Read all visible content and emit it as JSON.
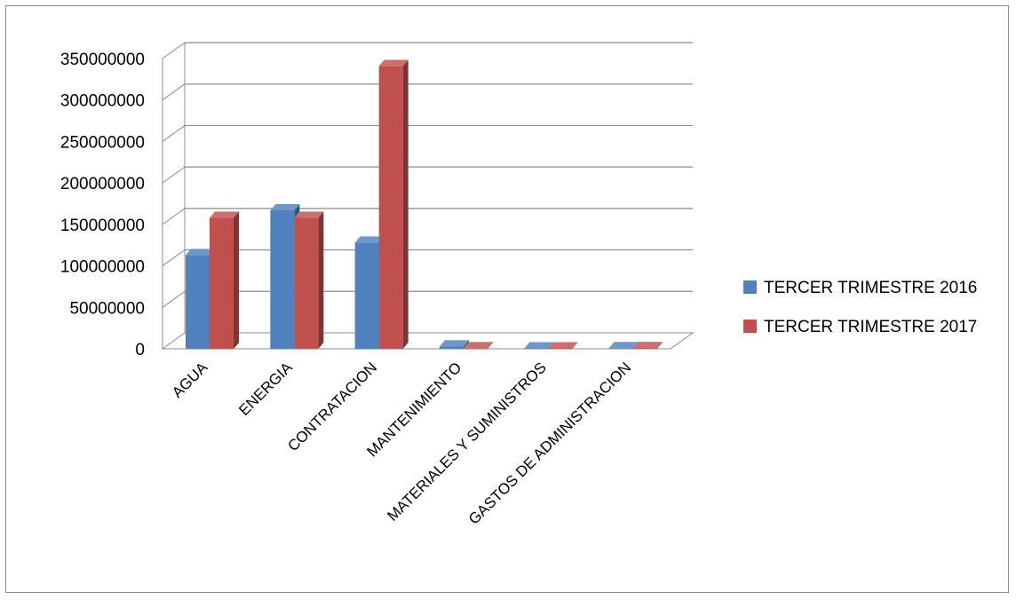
{
  "chart_data": {
    "type": "bar",
    "style": "3d-clustered-column",
    "title": "",
    "xlabel": "",
    "ylabel": "",
    "ylim": [
      0,
      350000000
    ],
    "yticks": [
      "0",
      "50000000",
      "100000000",
      "150000000",
      "200000000",
      "250000000",
      "300000000",
      "350000000"
    ],
    "grid": true,
    "legend_position": "right",
    "categories": [
      "AGUA",
      "ENERGIA",
      "CONTRATACION",
      "MANTENIMIENTO",
      "MATERIALES Y SUMINISTROS",
      "GASTOS DE ADMINISTRACION"
    ],
    "series": [
      {
        "name": "TERCER TRIMESTRE 2016",
        "color": "#4F81BD",
        "values": [
          113000000,
          167000000,
          128000000,
          3000000,
          500000,
          800000
        ]
      },
      {
        "name": "TERCER TRIMESTRE 2017",
        "color": "#C0504D",
        "values": [
          158000000,
          158000000,
          341000000,
          800000,
          600000,
          1000000
        ]
      }
    ]
  }
}
